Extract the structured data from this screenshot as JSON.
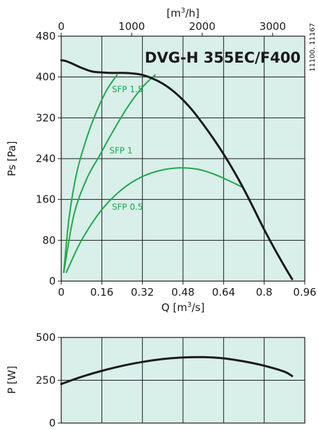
{
  "chart_data": [
    {
      "type": "line",
      "title": "DVG-H 355EC/F400",
      "code": "11100, 11167",
      "xlabel_base": "Q [m",
      "xlabel_sup": "3",
      "xlabel_tail": "/s]",
      "ylabel": "Ps [Pa]",
      "top_label_base": "[m",
      "top_label_sup": "3",
      "top_label_tail": "/h]",
      "xlim": [
        0,
        0.96
      ],
      "ylim": [
        0,
        480
      ],
      "top_xlim": [
        0,
        3456
      ],
      "xticks": [
        "0",
        "0.16",
        "0.32",
        "0.48",
        "0.64",
        "0.8",
        "0.96"
      ],
      "yticks": [
        "0",
        "80",
        "160",
        "240",
        "320",
        "400",
        "480"
      ],
      "top_ticks": [
        {
          "value": 0,
          "label": "0"
        },
        {
          "value": 1000,
          "label": "1000"
        },
        {
          "value": 2000,
          "label": "2000"
        },
        {
          "value": 3000,
          "label": "3000"
        }
      ],
      "grid": true,
      "series": [
        {
          "kind": "fan",
          "x": [
            0,
            0.02,
            0.04,
            0.08,
            0.12,
            0.16,
            0.2,
            0.24,
            0.28,
            0.32,
            0.36,
            0.4,
            0.44,
            0.48,
            0.52,
            0.56,
            0.6,
            0.64,
            0.68,
            0.72,
            0.76,
            0.8,
            0.84,
            0.88,
            0.91
          ],
          "y": [
            433,
            431,
            427,
            418,
            411,
            409,
            408,
            408,
            407,
            404,
            397,
            387,
            373,
            355,
            333,
            307,
            279,
            249,
            216,
            180,
            141,
            101,
            64,
            29,
            4
          ]
        },
        {
          "kind": "sfp",
          "name": "SFP 1.5",
          "x": [
            0.01,
            0.03,
            0.06,
            0.1,
            0.14,
            0.18,
            0.22
          ],
          "y": [
            17,
            120,
            210,
            280,
            333,
            375,
            404
          ]
        },
        {
          "kind": "sfp",
          "name": "SFP 1",
          "x": [
            0.01,
            0.05,
            0.1,
            0.15,
            0.2,
            0.26,
            0.32,
            0.37
          ],
          "y": [
            17,
            130,
            200,
            245,
            290,
            340,
            380,
            404
          ]
        },
        {
          "kind": "sfp",
          "name": "SFP 0.5",
          "x": [
            0.02,
            0.08,
            0.16,
            0.24,
            0.32,
            0.4,
            0.47,
            0.54,
            0.6,
            0.66,
            0.71
          ],
          "y": [
            17,
            80,
            140,
            180,
            205,
            218,
            222,
            219,
            210,
            197,
            185
          ]
        }
      ],
      "sfp_labels": [
        {
          "text": "SFP 1.5",
          "x": 0.2,
          "y": 370
        },
        {
          "text": "SFP 1",
          "x": 0.19,
          "y": 250
        },
        {
          "text": "SFP 0.5",
          "x": 0.2,
          "y": 140
        }
      ]
    },
    {
      "type": "line",
      "ylabel": "P [W]",
      "xlim": [
        0,
        0.96
      ],
      "ylim": [
        0,
        500
      ],
      "yticks": [
        "0",
        "250",
        "500"
      ],
      "grid": true,
      "series": [
        {
          "kind": "power",
          "x": [
            0,
            0.08,
            0.16,
            0.24,
            0.32,
            0.4,
            0.48,
            0.56,
            0.64,
            0.72,
            0.8,
            0.88,
            0.91
          ],
          "y": [
            228,
            270,
            305,
            334,
            357,
            374,
            383,
            385,
            378,
            360,
            335,
            300,
            275
          ]
        }
      ]
    }
  ]
}
